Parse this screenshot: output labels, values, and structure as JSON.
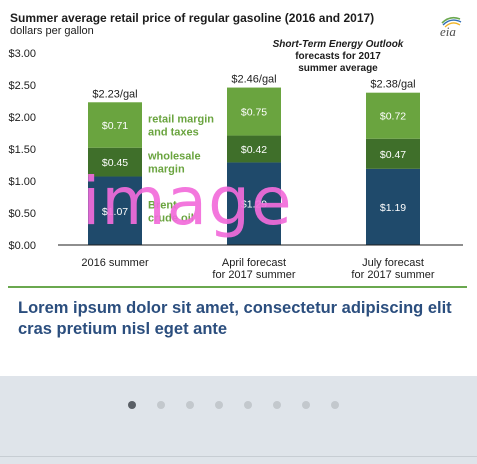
{
  "chart_data": {
    "type": "bar",
    "stacked": true,
    "title": "Summer average retail price of regular gasoline (2016 and 2017)",
    "ylabel": "dollars per gallon",
    "ylim": [
      0,
      3
    ],
    "yticks": [
      "$0.00",
      "$0.50",
      "$1.00",
      "$1.50",
      "$2.00",
      "$2.50",
      "$3.00"
    ],
    "ytick_values": [
      0,
      0.5,
      1,
      1.5,
      2,
      2.5,
      3
    ],
    "categories": [
      [
        "2016 summer"
      ],
      [
        "April forecast",
        "for 2017 summer"
      ],
      [
        "July forecast",
        "for 2017 summer"
      ]
    ],
    "totals": [
      "$2.23/gal",
      "$2.46/gal",
      "$2.38/gal"
    ],
    "series": [
      {
        "name": "Brent crude oil",
        "label_lines": [
          "Brent",
          "crude oil"
        ],
        "color": "#1f4a6b",
        "values": [
          1.07,
          1.29,
          1.19
        ],
        "data_labels": [
          "$1.07",
          "$1.29",
          "$1.19"
        ]
      },
      {
        "name": "wholesale margin",
        "label_lines": [
          "wholesale",
          "margin"
        ],
        "color": "#3f6f2a",
        "values": [
          0.45,
          0.42,
          0.47
        ],
        "data_labels": [
          "$0.45",
          "$0.42",
          "$0.47"
        ]
      },
      {
        "name": "retail margin and taxes",
        "label_lines": [
          "retail margin",
          "and taxes"
        ],
        "color": "#6aa43f",
        "values": [
          0.71,
          0.75,
          0.72
        ],
        "data_labels": [
          "$0.71",
          "$0.75",
          "$0.72"
        ]
      }
    ],
    "annotation": {
      "title": "Short-Term Energy Outlook",
      "lines": [
        "forecasts for 2017",
        "summer average"
      ]
    },
    "legend_placement": "inline beside first bar",
    "label_color": "#6aa43f",
    "legend_label_colors": [
      "#6aa43f",
      "#6aa43f",
      "#6aa43f"
    ],
    "grid": false
  },
  "logo": {
    "text": "eia",
    "name": "eia-logo"
  },
  "placeholder_text": "image",
  "caption": "Lorem ipsum dolor sit amet, consectetur adipiscing elit cras pretium nisl eget ante",
  "carousel": {
    "count": 8,
    "active_index": 0
  },
  "colors": {
    "caption": "#2b4e7e",
    "accent": "#6aa84f",
    "dot_active": "#5a5f66",
    "dot_inactive": "#c3c8cd"
  }
}
